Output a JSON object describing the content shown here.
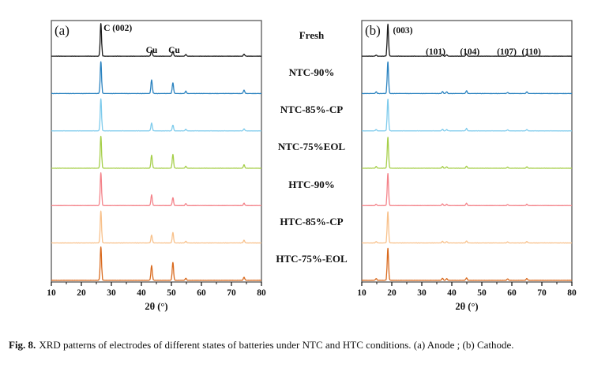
{
  "figure": {
    "caption_label": "Fig. 8.",
    "caption_text": "XRD patterns of electrodes of different states of batteries under NTC and HTC conditions. (a) Anode ; (b) Cathode."
  },
  "trace_labels": [
    "Fresh",
    "NTC-90%",
    "NTC-85%-CP",
    "NTC-75%EOL",
    "HTC-90%",
    "HTC-85%-CP",
    "HTC-75%-EOL"
  ],
  "colors": {
    "fresh": "#1a1a1a",
    "ntc90": "#2b83c0",
    "ntc85cp": "#7ecbec",
    "ntc75eol": "#a6cf4a",
    "htc90": "#f4838a",
    "htc85cp": "#f8c18b",
    "htc75eol": "#d96a1e",
    "frame": "#4a4a4a",
    "tick_text": "#111111"
  },
  "chart_data": [
    {
      "type": "line",
      "panel_label": "(a)",
      "title": "",
      "xlabel": "2θ (°)",
      "ylabel": "",
      "xlim": [
        10,
        80
      ],
      "xticks": [
        10,
        20,
        30,
        40,
        50,
        60,
        70,
        80
      ],
      "minor_ticks": [
        15,
        25,
        35,
        45,
        55,
        65,
        75
      ],
      "grid": false,
      "legend_position": "center-right-labels",
      "annotations": [
        {
          "text": "C (002)",
          "x": 27.4,
          "y": 25,
          "anchor": "start"
        },
        {
          "text": "Cu",
          "x": 43.4,
          "y": 53,
          "anchor": "middle"
        },
        {
          "text": "Cu",
          "x": 50.9,
          "y": 53,
          "anchor": "middle"
        }
      ],
      "series": [
        {
          "name": "Fresh",
          "color": "#1a1a1a",
          "peaks": [
            [
              26.5,
              0.95
            ],
            [
              43.4,
              0.17
            ],
            [
              50.5,
              0.14
            ],
            [
              54.8,
              0.05
            ],
            [
              74.2,
              0.06
            ]
          ]
        },
        {
          "name": "NTC-90%",
          "color": "#2b83c0",
          "peaks": [
            [
              26.5,
              0.93
            ],
            [
              43.4,
              0.4
            ],
            [
              50.5,
              0.31
            ],
            [
              54.8,
              0.07
            ],
            [
              74.2,
              0.1
            ]
          ]
        },
        {
          "name": "NTC-85%-CP",
          "color": "#7ecbec",
          "peaks": [
            [
              26.5,
              0.93
            ],
            [
              43.4,
              0.23
            ],
            [
              50.5,
              0.17
            ],
            [
              54.8,
              0.05
            ],
            [
              74.2,
              0.06
            ]
          ]
        },
        {
          "name": "NTC-75%EOL",
          "color": "#a6cf4a",
          "peaks": [
            [
              26.5,
              0.93
            ],
            [
              43.4,
              0.38
            ],
            [
              50.5,
              0.4
            ],
            [
              54.8,
              0.06
            ],
            [
              74.2,
              0.1
            ]
          ]
        },
        {
          "name": "HTC-90%",
          "color": "#f4838a",
          "peaks": [
            [
              26.5,
              0.95
            ],
            [
              43.4,
              0.31
            ],
            [
              50.5,
              0.23
            ],
            [
              54.8,
              0.06
            ],
            [
              74.2,
              0.07
            ]
          ]
        },
        {
          "name": "HTC-85%-CP",
          "color": "#f8c18b",
          "peaks": [
            [
              26.5,
              0.93
            ],
            [
              43.4,
              0.23
            ],
            [
              50.5,
              0.3
            ],
            [
              54.8,
              0.05
            ],
            [
              74.2,
              0.08
            ]
          ]
        },
        {
          "name": "HTC-75%-EOL",
          "color": "#d96a1e",
          "peaks": [
            [
              26.5,
              0.97
            ],
            [
              43.4,
              0.43
            ],
            [
              50.5,
              0.52
            ],
            [
              54.8,
              0.06
            ],
            [
              74.2,
              0.09
            ]
          ]
        }
      ]
    },
    {
      "type": "line",
      "panel_label": "(b)",
      "title": "",
      "xlabel": "2θ (°)",
      "ylabel": "",
      "xlim": [
        10,
        80
      ],
      "xticks": [
        10,
        20,
        30,
        40,
        50,
        60,
        70,
        80
      ],
      "minor_ticks": [
        15,
        25,
        35,
        45,
        55,
        65,
        75
      ],
      "grid": false,
      "legend_position": "center-left-labels",
      "annotations": [
        {
          "text": "(003)",
          "x": 20.4,
          "y": 28,
          "anchor": "start"
        },
        {
          "text": "(101)",
          "x": 34.6,
          "y": 55,
          "anchor": "middle"
        },
        {
          "text": "(104)",
          "x": 46.0,
          "y": 55,
          "anchor": "middle"
        },
        {
          "text": "(107)",
          "x": 58.3,
          "y": 55,
          "anchor": "middle"
        },
        {
          "text": "(110)",
          "x": 66.5,
          "y": 55,
          "anchor": "middle"
        }
      ],
      "series": [
        {
          "name": "Fresh",
          "color": "#1a1a1a",
          "peaks": [
            [
              14.8,
              0.03
            ],
            [
              18.7,
              0.93
            ],
            [
              36.9,
              0.05
            ],
            [
              38.3,
              0.04
            ],
            [
              44.9,
              0.07
            ],
            [
              58.6,
              0.03
            ],
            [
              65.0,
              0.04
            ]
          ]
        },
        {
          "name": "NTC-90%",
          "color": "#2b83c0",
          "peaks": [
            [
              14.8,
              0.05
            ],
            [
              18.7,
              0.92
            ],
            [
              36.9,
              0.06
            ],
            [
              38.3,
              0.05
            ],
            [
              44.9,
              0.08
            ],
            [
              58.6,
              0.03
            ],
            [
              65.0,
              0.05
            ]
          ]
        },
        {
          "name": "NTC-85%-CP",
          "color": "#7ecbec",
          "peaks": [
            [
              14.8,
              0.04
            ],
            [
              18.7,
              0.92
            ],
            [
              36.9,
              0.05
            ],
            [
              38.3,
              0.04
            ],
            [
              44.9,
              0.07
            ],
            [
              58.6,
              0.03
            ],
            [
              65.0,
              0.04
            ]
          ]
        },
        {
          "name": "NTC-75%EOL",
          "color": "#a6cf4a",
          "peaks": [
            [
              14.8,
              0.05
            ],
            [
              18.7,
              0.9
            ],
            [
              36.9,
              0.05
            ],
            [
              38.3,
              0.04
            ],
            [
              44.9,
              0.06
            ],
            [
              58.6,
              0.03
            ],
            [
              65.0,
              0.04
            ]
          ]
        },
        {
          "name": "HTC-90%",
          "color": "#f4838a",
          "peaks": [
            [
              14.8,
              0.04
            ],
            [
              18.7,
              0.93
            ],
            [
              36.9,
              0.05
            ],
            [
              38.3,
              0.04
            ],
            [
              44.9,
              0.07
            ],
            [
              58.6,
              0.03
            ],
            [
              65.0,
              0.04
            ]
          ]
        },
        {
          "name": "HTC-85%-CP",
          "color": "#f8c18b",
          "peaks": [
            [
              14.8,
              0.04
            ],
            [
              18.7,
              0.91
            ],
            [
              36.9,
              0.05
            ],
            [
              38.3,
              0.04
            ],
            [
              44.9,
              0.06
            ],
            [
              58.6,
              0.03
            ],
            [
              65.0,
              0.04
            ]
          ]
        },
        {
          "name": "HTC-75%-EOL",
          "color": "#d96a1e",
          "peaks": [
            [
              14.8,
              0.05
            ],
            [
              18.7,
              0.93
            ],
            [
              36.9,
              0.06
            ],
            [
              38.3,
              0.05
            ],
            [
              44.9,
              0.07
            ],
            [
              58.6,
              0.04
            ],
            [
              65.0,
              0.05
            ]
          ]
        }
      ]
    }
  ]
}
